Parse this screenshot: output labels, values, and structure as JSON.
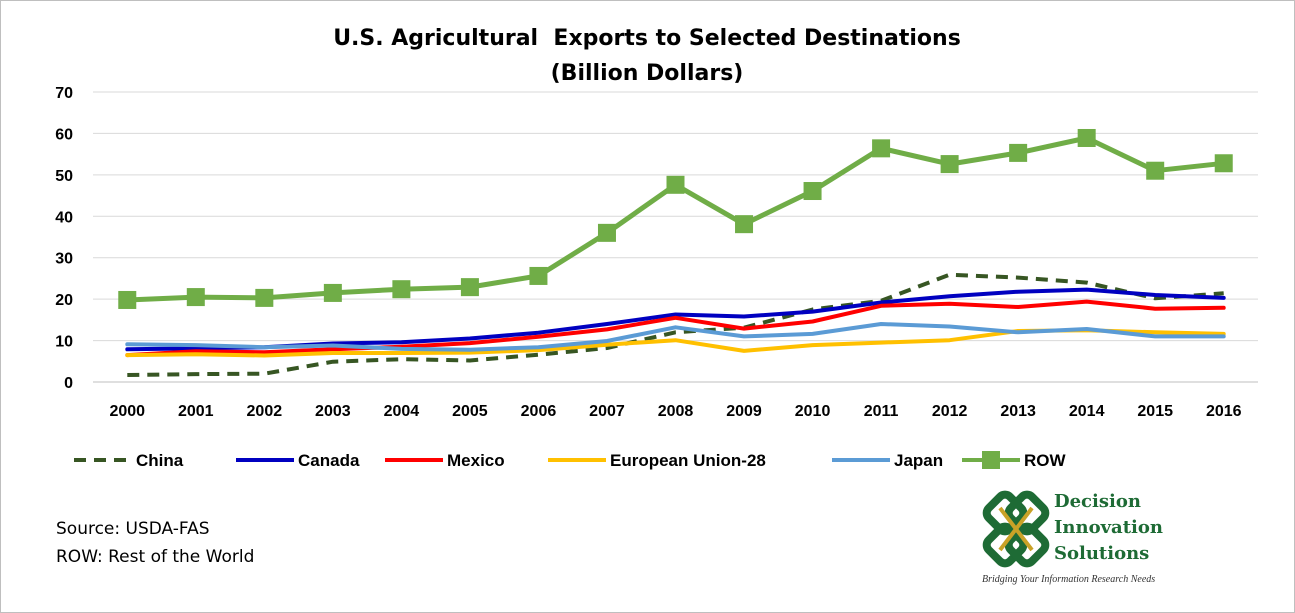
{
  "chart_data": {
    "type": "line",
    "title": "U.S. Agricultural  Exports to Selected Destinations",
    "subtitle": "(Billion Dollars)",
    "xlabel": "",
    "ylabel": "",
    "x": [
      "2000",
      "2001",
      "2002",
      "2003",
      "2004",
      "2005",
      "2006",
      "2007",
      "2008",
      "2009",
      "2010",
      "2011",
      "2012",
      "2013",
      "2014",
      "2015",
      "2016"
    ],
    "ylim": [
      0,
      70
    ],
    "yticks": [
      "0",
      "10",
      "20",
      "30",
      "40",
      "50",
      "60",
      "70"
    ],
    "grid": "horizontal",
    "legend": "bottom",
    "series": [
      {
        "name": "China",
        "color": "#375623",
        "style": "dashed",
        "values": [
          1.7,
          1.9,
          2.0,
          4.9,
          5.5,
          5.2,
          6.6,
          8.2,
          12.0,
          13.1,
          17.5,
          19.6,
          25.9,
          25.2,
          24.0,
          20.2,
          21.4
        ]
      },
      {
        "name": "Canada",
        "color": "#0000c0",
        "style": "solid",
        "values": [
          7.9,
          8.1,
          8.4,
          9.3,
          9.6,
          10.5,
          11.9,
          14.0,
          16.3,
          15.8,
          17.0,
          19.2,
          20.7,
          21.8,
          22.3,
          21.0,
          20.3
        ]
      },
      {
        "name": "Mexico",
        "color": "#ff0000",
        "style": "solid",
        "values": [
          6.5,
          7.4,
          7.2,
          7.9,
          8.5,
          9.4,
          10.9,
          12.7,
          15.5,
          12.9,
          14.6,
          18.4,
          18.9,
          18.1,
          19.4,
          17.7,
          17.9
        ]
      },
      {
        "name": "European Union-28",
        "color": "#ffc000",
        "style": "solid",
        "values": [
          6.5,
          6.7,
          6.4,
          7.0,
          7.0,
          7.1,
          7.7,
          9.0,
          10.1,
          7.5,
          8.9,
          9.5,
          10.1,
          12.3,
          12.5,
          12.0,
          11.6
        ]
      },
      {
        "name": "Japan",
        "color": "#5b9bd5",
        "style": "solid",
        "values": [
          9.1,
          8.9,
          8.4,
          8.8,
          8.0,
          7.8,
          8.4,
          9.9,
          13.2,
          11.0,
          11.6,
          14.0,
          13.4,
          12.0,
          12.8,
          11.0,
          11.0
        ]
      },
      {
        "name": "ROW",
        "color": "#70ad47",
        "style": "solid-square-markers",
        "values": [
          19.8,
          20.5,
          20.3,
          21.5,
          22.4,
          22.9,
          25.6,
          36.0,
          47.6,
          38.1,
          46.1,
          56.4,
          52.6,
          55.3,
          58.9,
          51.0,
          52.8
        ]
      }
    ]
  },
  "notes": {
    "source": "Source: USDA-FAS",
    "row": "ROW: Rest of the World"
  },
  "logo": {
    "line1": "Decision",
    "line2": "Innovation",
    "line3": "Solutions",
    "tagline": "Bridging Your Information Research Needs",
    "colors": {
      "green": "#1e6b35",
      "gold": "#c9a227"
    }
  }
}
